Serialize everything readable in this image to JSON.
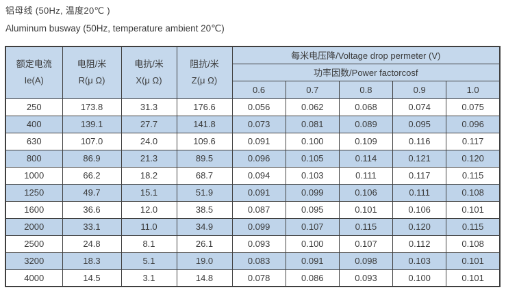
{
  "title": {
    "zh": "铝母线 (50Hz, 温度20℃ )",
    "en": "Aluminum busway (50Hz, temperature ambient 20℃)"
  },
  "table": {
    "left_columns": [
      {
        "line1": "额定电流",
        "line2": "Ie(A)"
      },
      {
        "line1": "电阻/米",
        "line2": "R(μ Ω)"
      },
      {
        "line1": "电抗/米",
        "line2": "X(μ Ω)"
      },
      {
        "line1": "阻抗/米",
        "line2": "Z(μ Ω)"
      }
    ],
    "voltage_drop_header": "每米电压降/Voltage drop permeter (V)",
    "power_factor_header": "功率因数/Power factorcosf",
    "power_factors": [
      "0.6",
      "0.7",
      "0.8",
      "0.9",
      "1.0"
    ],
    "rows": [
      [
        "250",
        "173.8",
        "31.3",
        "176.6",
        "0.056",
        "0.062",
        "0.068",
        "0.074",
        "0.075"
      ],
      [
        "400",
        "139.1",
        "27.7",
        "141.8",
        "0.073",
        "0.081",
        "0.089",
        "0.095",
        "0.096"
      ],
      [
        "630",
        "107.0",
        "24.0",
        "109.6",
        "0.091",
        "0.100",
        "0.109",
        "0.116",
        "0.117"
      ],
      [
        "800",
        "86.9",
        "21.3",
        "89.5",
        "0.096",
        "0.105",
        "0.114",
        "0.121",
        "0.120"
      ],
      [
        "1000",
        "66.2",
        "18.2",
        "68.7",
        "0.094",
        "0.103",
        "0.111",
        "0.117",
        "0.115"
      ],
      [
        "1250",
        "49.7",
        "15.1",
        "51.9",
        "0.091",
        "0.099",
        "0.106",
        "0.111",
        "0.108"
      ],
      [
        "1600",
        "36.6",
        "12.0",
        "38.5",
        "0.087",
        "0.095",
        "0.101",
        "0.106",
        "0.101"
      ],
      [
        "2000",
        "33.1",
        "11.0",
        "34.9",
        "0.099",
        "0.107",
        "0.115",
        "0.120",
        "0.115"
      ],
      [
        "2500",
        "24.8",
        "8.1",
        "26.1",
        "0.093",
        "0.100",
        "0.107",
        "0.112",
        "0.108"
      ],
      [
        "3200",
        "18.3",
        "5.1",
        "19.0",
        "0.083",
        "0.091",
        "0.098",
        "0.103",
        "0.101"
      ],
      [
        "4000",
        "14.5",
        "3.1",
        "14.8",
        "0.078",
        "0.086",
        "0.093",
        "0.100",
        "0.101"
      ]
    ]
  },
  "colors": {
    "header_fill": "#c5d8ec",
    "stripe_fill": "#bfd4ea",
    "border": "#3f3f3f",
    "text": "#3a3a3a"
  }
}
